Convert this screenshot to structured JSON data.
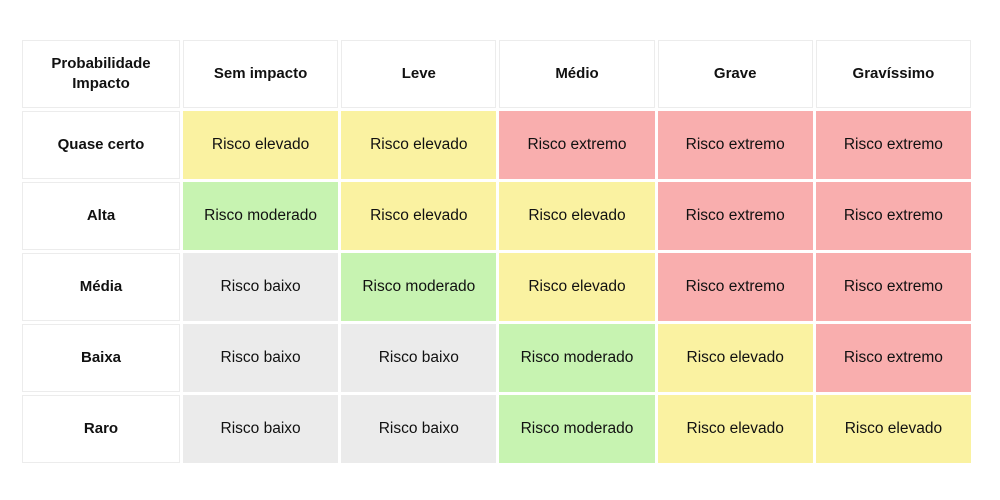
{
  "matrix": {
    "corner": {
      "line1": "Probabilidade",
      "line2": "Impacto"
    },
    "columns": [
      "Sem impacto",
      "Leve",
      "Médio",
      "Grave",
      "Gravíssimo"
    ],
    "rows": [
      {
        "label": "Quase certo",
        "cells": [
          {
            "text": "Risco elevado",
            "level": "elevado"
          },
          {
            "text": "Risco elevado",
            "level": "elevado"
          },
          {
            "text": "Risco extremo",
            "level": "extremo"
          },
          {
            "text": "Risco extremo",
            "level": "extremo"
          },
          {
            "text": "Risco extremo",
            "level": "extremo"
          }
        ]
      },
      {
        "label": "Alta",
        "cells": [
          {
            "text": "Risco moderado",
            "level": "moderado"
          },
          {
            "text": "Risco elevado",
            "level": "elevado"
          },
          {
            "text": "Risco elevado",
            "level": "elevado"
          },
          {
            "text": "Risco extremo",
            "level": "extremo"
          },
          {
            "text": "Risco extremo",
            "level": "extremo"
          }
        ]
      },
      {
        "label": "Média",
        "cells": [
          {
            "text": "Risco baixo",
            "level": "baixo"
          },
          {
            "text": "Risco moderado",
            "level": "moderado"
          },
          {
            "text": "Risco elevado",
            "level": "elevado"
          },
          {
            "text": "Risco extremo",
            "level": "extremo"
          },
          {
            "text": "Risco extremo",
            "level": "extremo"
          }
        ]
      },
      {
        "label": "Baixa",
        "cells": [
          {
            "text": "Risco baixo",
            "level": "baixo"
          },
          {
            "text": "Risco baixo",
            "level": "baixo"
          },
          {
            "text": "Risco moderado",
            "level": "moderado"
          },
          {
            "text": "Risco elevado",
            "level": "elevado"
          },
          {
            "text": "Risco extremo",
            "level": "extremo"
          }
        ]
      },
      {
        "label": "Raro",
        "cells": [
          {
            "text": "Risco baixo",
            "level": "baixo"
          },
          {
            "text": "Risco baixo",
            "level": "baixo"
          },
          {
            "text": "Risco moderado",
            "level": "moderado"
          },
          {
            "text": "Risco elevado",
            "level": "elevado"
          },
          {
            "text": "Risco elevado",
            "level": "elevado"
          }
        ]
      }
    ]
  },
  "palette": {
    "baixo": "#EBEBEB",
    "moderado": "#C7F3B1",
    "elevado": "#FAF2A1",
    "extremo": "#F9AEAE"
  },
  "chart_data": {
    "type": "heatmap",
    "title": "",
    "corner_label": "Probabilidade / Impacto",
    "x_categories": [
      "Sem impacto",
      "Leve",
      "Médio",
      "Grave",
      "Gravíssimo"
    ],
    "y_categories": [
      "Quase certo",
      "Alta",
      "Média",
      "Baixa",
      "Raro"
    ],
    "values": [
      [
        "Risco elevado",
        "Risco elevado",
        "Risco extremo",
        "Risco extremo",
        "Risco extremo"
      ],
      [
        "Risco moderado",
        "Risco elevado",
        "Risco elevado",
        "Risco extremo",
        "Risco extremo"
      ],
      [
        "Risco baixo",
        "Risco moderado",
        "Risco elevado",
        "Risco extremo",
        "Risco extremo"
      ],
      [
        "Risco baixo",
        "Risco baixo",
        "Risco moderado",
        "Risco elevado",
        "Risco extremo"
      ],
      [
        "Risco baixo",
        "Risco baixo",
        "Risco moderado",
        "Risco elevado",
        "Risco elevado"
      ]
    ],
    "color_scale": {
      "Risco baixo": "#EBEBEB",
      "Risco moderado": "#C7F3B1",
      "Risco elevado": "#FAF2A1",
      "Risco extremo": "#F9AEAE"
    },
    "legend_position": "none",
    "grid": false
  }
}
